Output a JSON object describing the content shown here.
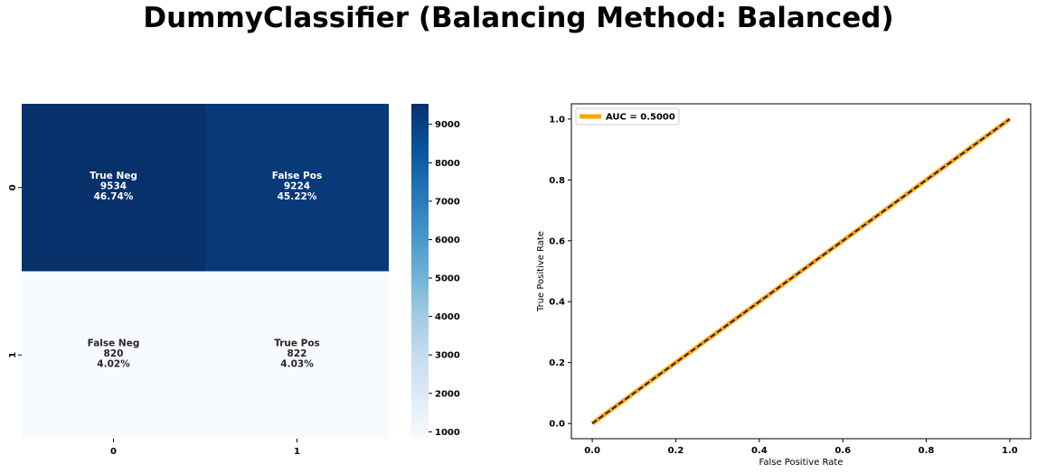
{
  "figure": {
    "suptitle": "DummyClassifier (Balancing Method: Balanced)"
  },
  "chart_data": [
    {
      "type": "heatmap",
      "colormap": "Blues",
      "rows": [
        "0",
        "1"
      ],
      "cols": [
        "0",
        "1"
      ],
      "values": [
        [
          9534,
          9224
        ],
        [
          820,
          822
        ]
      ],
      "cell_labels": [
        [
          {
            "name": "True Neg",
            "count": "9534",
            "pct": "46.74%"
          },
          {
            "name": "False Pos",
            "count": "9224",
            "pct": "45.22%"
          }
        ],
        [
          {
            "name": "False Neg",
            "count": "820",
            "pct": "4.02%"
          },
          {
            "name": "True Pos",
            "count": "822",
            "pct": "4.03%"
          }
        ]
      ],
      "colorbar": {
        "min": 820,
        "max": 9534,
        "ticks": [
          1000,
          2000,
          3000,
          4000,
          5000,
          6000,
          7000,
          8000,
          9000
        ]
      }
    },
    {
      "type": "line",
      "xlabel": "False Positive Rate",
      "ylabel": "True Positive Rate",
      "xlim": [
        -0.05,
        1.05
      ],
      "ylim": [
        -0.05,
        1.05
      ],
      "xticks": [
        "0.0",
        "0.2",
        "0.4",
        "0.6",
        "0.8",
        "1.0"
      ],
      "yticks": [
        "0.0",
        "0.2",
        "0.4",
        "0.6",
        "0.8",
        "1.0"
      ],
      "legend_position": "top-left",
      "series": [
        {
          "name": "AUC = 0.5000",
          "x": [
            0,
            1
          ],
          "y": [
            0,
            1
          ],
          "color": "#ffa500"
        }
      ],
      "reference_line": {
        "x": [
          0,
          1
        ],
        "y": [
          0,
          1
        ],
        "color": "#000080",
        "style": "dashed"
      }
    }
  ]
}
